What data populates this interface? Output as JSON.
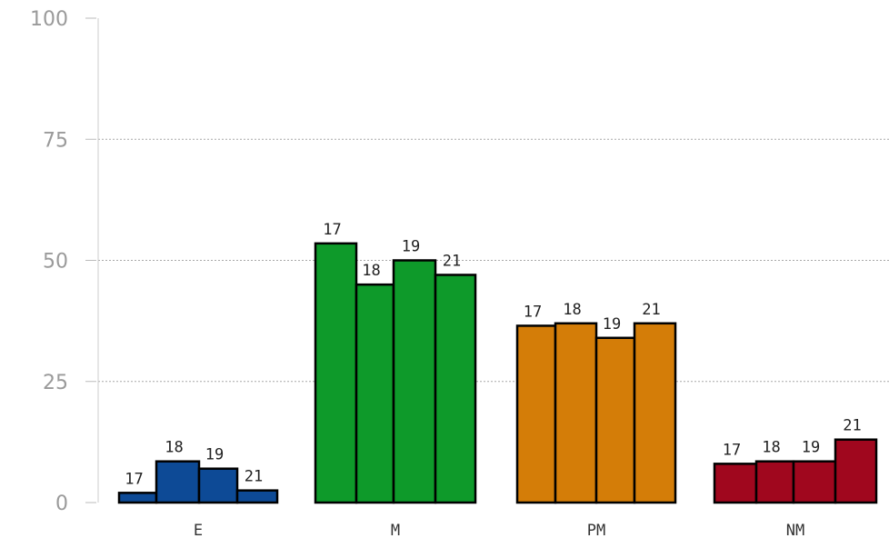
{
  "chart_data": {
    "type": "bar",
    "categories": [
      "E",
      "M",
      "PM",
      "NM"
    ],
    "series_labels": [
      "17",
      "18",
      "19",
      "21"
    ],
    "values": [
      [
        2,
        8.5,
        7,
        2.5
      ],
      [
        53.5,
        45,
        50,
        47
      ],
      [
        36.5,
        37,
        34,
        37
      ],
      [
        8,
        8.5,
        8.5,
        13
      ]
    ],
    "colors": [
      "#0d4a96",
      "#0e9a2a",
      "#d47d08",
      "#a0071e"
    ],
    "yticks": [
      0,
      25,
      50,
      75,
      100
    ],
    "ylim": [
      0,
      100
    ],
    "grid": true
  }
}
